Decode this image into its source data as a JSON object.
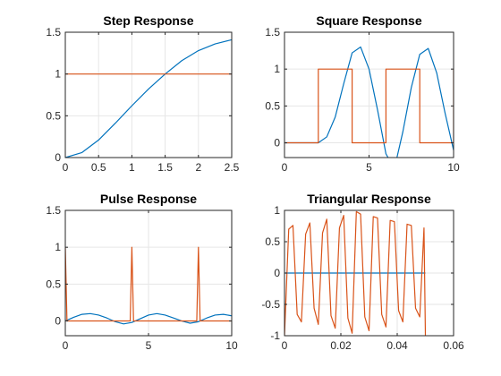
{
  "colors": {
    "series1": "#0072BD",
    "series2": "#D95319",
    "grid": "#e6e6e6",
    "axis": "#262626"
  },
  "chart_data": [
    {
      "type": "line",
      "title": "Step Response",
      "xlim": [
        0,
        2.5
      ],
      "ylim": [
        0,
        1.5
      ],
      "xticks": [
        0,
        0.5,
        1,
        1.5,
        2,
        2.5
      ],
      "xticklabels": [
        "0",
        "0.5",
        "1",
        "1.5",
        "2",
        "2.5"
      ],
      "yticks": [
        0,
        0.5,
        1,
        1.5
      ],
      "yticklabels": [
        "0",
        "0.5",
        "1",
        "1.5"
      ],
      "grid": true,
      "series": [
        {
          "color": "#0072BD",
          "x": [
            0,
            0.25,
            0.5,
            0.75,
            1,
            1.25,
            1.5,
            1.75,
            2,
            2.25,
            2.5
          ],
          "y": [
            0,
            0.06,
            0.21,
            0.41,
            0.62,
            0.82,
            1.0,
            1.16,
            1.28,
            1.36,
            1.41
          ]
        },
        {
          "color": "#D95319",
          "x": [
            0,
            2.5
          ],
          "y": [
            1,
            1
          ]
        }
      ]
    },
    {
      "type": "line",
      "title": "Square Response",
      "xlim": [
        0,
        10
      ],
      "ylim": [
        -0.2,
        1.5
      ],
      "xticks": [
        0,
        5,
        10
      ],
      "xticklabels": [
        "0",
        "5",
        "10"
      ],
      "yticks": [
        0,
        0.5,
        1,
        1.5
      ],
      "yticklabels": [
        "0",
        "0.5",
        "1",
        "1.5"
      ],
      "grid": true,
      "series": [
        {
          "color": "#0072BD",
          "x": [
            0,
            2,
            2.5,
            3,
            3.5,
            4,
            4.5,
            5,
            5.5,
            6,
            6.5,
            7,
            7.5,
            8,
            8.5,
            9,
            9.5,
            10
          ],
          "y": [
            0,
            0,
            0.08,
            0.35,
            0.8,
            1.22,
            1.3,
            1.0,
            0.45,
            -0.15,
            -0.35,
            0.15,
            0.75,
            1.2,
            1.28,
            0.95,
            0.4,
            -0.1
          ]
        },
        {
          "color": "#D95319",
          "x": [
            0,
            2,
            2,
            4,
            4,
            6,
            6,
            8,
            8,
            10,
            10
          ],
          "y": [
            0,
            0,
            1,
            1,
            0,
            0,
            1,
            1,
            0,
            0,
            1
          ]
        }
      ]
    },
    {
      "type": "line",
      "title": "Pulse Response",
      "xlim": [
        0,
        10
      ],
      "ylim": [
        -0.2,
        1.5
      ],
      "xticks": [
        0,
        5,
        10
      ],
      "xticklabels": [
        "0",
        "5",
        "10"
      ],
      "yticks": [
        0,
        0.5,
        1,
        1.5
      ],
      "yticklabels": [
        "0",
        "0.5",
        "1",
        "1.5"
      ],
      "grid": true,
      "series": [
        {
          "color": "#0072BD",
          "x": [
            0,
            0.5,
            1,
            1.5,
            2,
            2.5,
            3,
            3.5,
            4,
            4.5,
            5,
            5.5,
            6,
            6.5,
            7,
            7.5,
            8,
            8.5,
            9,
            9.5,
            10
          ],
          "y": [
            0,
            0.05,
            0.09,
            0.1,
            0.08,
            0.04,
            -0.01,
            -0.04,
            -0.02,
            0.03,
            0.08,
            0.1,
            0.08,
            0.04,
            0.0,
            -0.03,
            -0.01,
            0.04,
            0.08,
            0.09,
            0.07
          ]
        },
        {
          "color": "#D95319",
          "x": [
            0,
            0.1,
            3.9,
            4,
            4.1,
            7.9,
            8,
            8.1,
            10
          ],
          "y": [
            1,
            0,
            0,
            1,
            0,
            0,
            1,
            0,
            0
          ]
        }
      ]
    },
    {
      "type": "line",
      "title": "Triangular Response",
      "xlim": [
        0,
        0.06
      ],
      "ylim": [
        -1,
        1
      ],
      "xticks": [
        0,
        0.02,
        0.04,
        0.06
      ],
      "xticklabels": [
        "0",
        "0.02",
        "0.04",
        "0.06"
      ],
      "yticks": [
        -1,
        -0.5,
        0,
        0.5,
        1
      ],
      "yticklabels": [
        "-1",
        "-0.5",
        "0",
        "0.5",
        "1"
      ],
      "grid": true,
      "series": [
        {
          "color": "#0072BD",
          "x": [
            0,
            0.05
          ],
          "y": [
            0,
            0
          ]
        },
        {
          "color": "#D95319",
          "x": [
            0,
            0.0015,
            0.003,
            0.0045,
            0.006,
            0.0075,
            0.009,
            0.0105,
            0.012,
            0.0135,
            0.015,
            0.0165,
            0.018,
            0.0195,
            0.021,
            0.0225,
            0.024,
            0.0255,
            0.027,
            0.0285,
            0.03,
            0.0315,
            0.033,
            0.0345,
            0.036,
            0.0375,
            0.039,
            0.0405,
            0.042,
            0.0435,
            0.045,
            0.0465,
            0.048,
            0.0495,
            0.05
          ],
          "y": [
            -1,
            0.7,
            0.76,
            -0.66,
            -0.78,
            0.62,
            0.8,
            -0.56,
            -0.82,
            0.64,
            0.86,
            -0.68,
            -0.88,
            0.72,
            0.92,
            -0.72,
            -0.96,
            0.98,
            0.94,
            -0.7,
            -0.92,
            0.9,
            0.88,
            -0.66,
            -0.86,
            0.84,
            0.82,
            -0.6,
            -0.78,
            0.78,
            0.76,
            -0.56,
            -0.7,
            0.72,
            -1
          ]
        }
      ]
    }
  ]
}
